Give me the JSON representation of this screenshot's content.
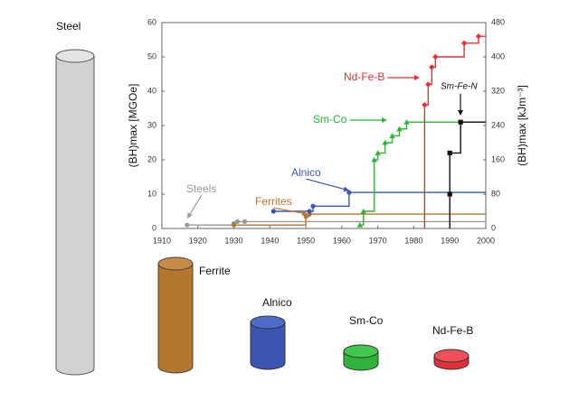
{
  "chart_data": {
    "type": "step",
    "y_label": "(BH)max [MGOe]",
    "y2_label": "(BH)max [kJm⁻³]",
    "xlim": [
      1910,
      2000
    ],
    "xticks": [
      1910,
      1920,
      1930,
      1940,
      1950,
      1960,
      1970,
      1980,
      1990,
      2000
    ],
    "ylim": [
      0,
      60
    ],
    "yticks": [
      0,
      10,
      20,
      30,
      40,
      50,
      60
    ],
    "y2lim": [
      0,
      480
    ],
    "y2ticks": [
      0,
      80,
      160,
      240,
      320,
      400,
      480
    ],
    "grid": false,
    "series": [
      {
        "name": "Steels",
        "color": "#9a9a9a",
        "marker": "circle",
        "drop_line": false,
        "x": [
          1917,
          1930,
          1931,
          1933
        ],
        "values": [
          1,
          1.5,
          2,
          2
        ]
      },
      {
        "name": "Ferrites",
        "color": "#b5762e",
        "marker": "circle",
        "drop_line": false,
        "x": [
          1930,
          1950,
          1951
        ],
        "values": [
          1,
          3.5,
          4.2
        ]
      },
      {
        "name": "Alnico",
        "color": "#3a56b0",
        "marker": "circle",
        "drop_line": false,
        "x": [
          1941,
          1951,
          1952,
          1962
        ],
        "values": [
          5,
          5,
          6.5,
          10.5
        ]
      },
      {
        "name": "Sm-Co",
        "color": "#2fb33a",
        "marker": "triangle",
        "drop_line": false,
        "x": [
          1965,
          1966,
          1969,
          1970,
          1972,
          1974,
          1976,
          1978
        ],
        "values": [
          1,
          5,
          20,
          22,
          25,
          27,
          29,
          31
        ]
      },
      {
        "name": "Nd-Fe-B",
        "color": "#e0303a",
        "marker": "diamond",
        "drop_line": true,
        "x": [
          1983,
          1984,
          1985,
          1986,
          1994,
          1998
        ],
        "values": [
          36,
          42,
          47,
          50,
          54,
          56
        ]
      },
      {
        "name": "Sm-Fe-N",
        "color": "#111111",
        "marker": "square",
        "drop_line": true,
        "x": [
          1990,
          1990,
          1993
        ],
        "values": [
          10,
          22,
          31
        ]
      }
    ]
  },
  "cylinders": [
    {
      "label": "Steel"
    },
    {
      "label": "Ferrite"
    },
    {
      "label": "Alnico"
    },
    {
      "label": "Sm-Co"
    },
    {
      "label": "Nd-Fe-B"
    }
  ]
}
